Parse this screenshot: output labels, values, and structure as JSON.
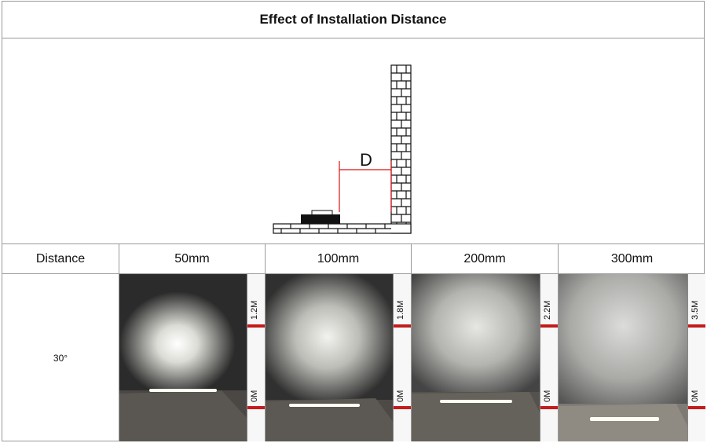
{
  "title": "Effect of Installation Distance",
  "diagram": {
    "distance_label": "D"
  },
  "header": {
    "first": "Distance",
    "columns": [
      "50mm",
      "100mm",
      "200mm",
      "300mm"
    ]
  },
  "row": {
    "angle": "30°",
    "photos": [
      {
        "ruler_top": "1.2M",
        "ruler_bottom": "0M"
      },
      {
        "ruler_top": "1.8M",
        "ruler_bottom": "0M"
      },
      {
        "ruler_top": "2.2M",
        "ruler_bottom": "0M"
      },
      {
        "ruler_top": "3.5M",
        "ruler_bottom": "0M"
      }
    ]
  },
  "colors": {
    "accent": "#c41b1b",
    "border": "#9a9a9a",
    "wall_dark": "#3a3a3a"
  }
}
